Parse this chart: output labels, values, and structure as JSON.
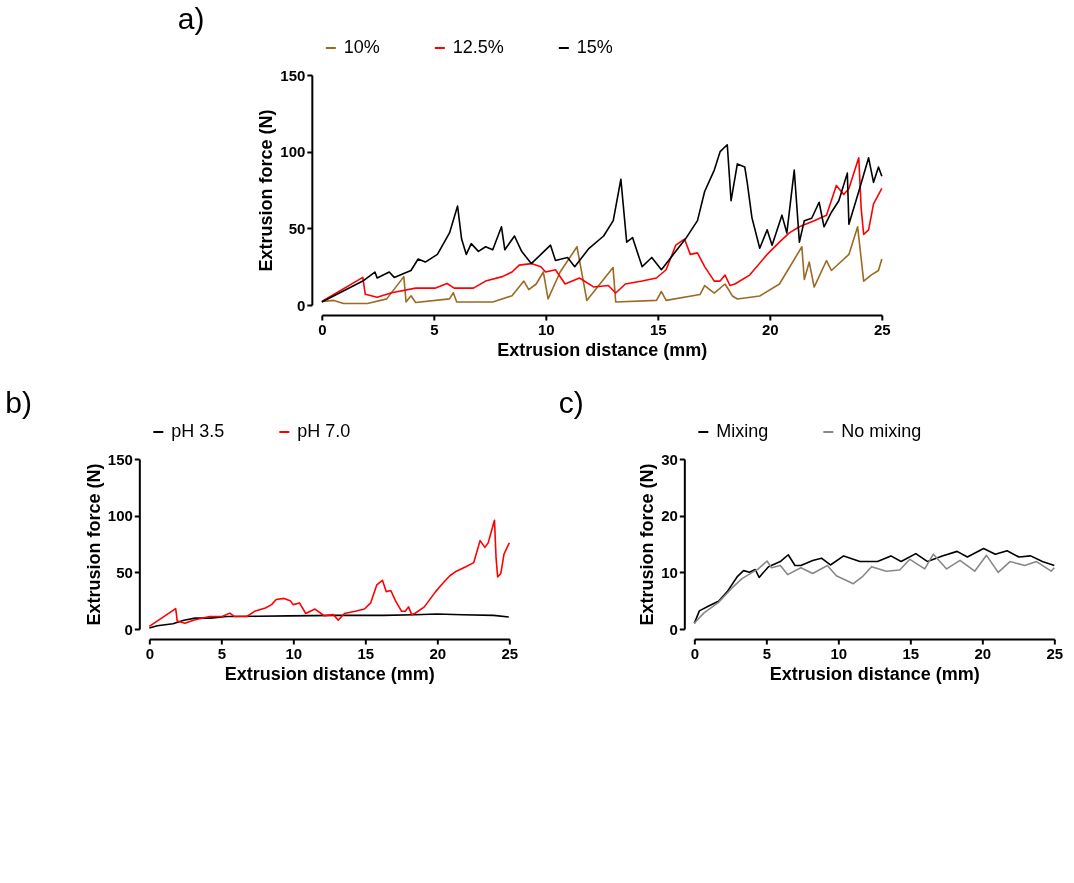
{
  "chart_data": [
    {
      "type": "line",
      "title": "a)",
      "xlabel": "Extrusion distance (mm)",
      "ylabel": "Extrusion force (N)",
      "xlim": [
        0,
        25
      ],
      "ylim": [
        0,
        150
      ],
      "xticks": [
        0,
        5,
        10,
        15,
        20,
        25
      ],
      "yticks": [
        0,
        50,
        100,
        150
      ],
      "grid": false,
      "legend": "top",
      "series": [
        {
          "name": "10%",
          "color": "#9c6a22",
          "x": [
            0,
            0.54,
            0.97,
            2.04,
            2.9,
            3.66,
            3.76,
            3.98,
            4.19,
            5.7,
            5.87,
            6.02,
            7.63,
            8.49,
            9.02,
            9.24,
            9.57,
            9.89,
            10.1,
            10.64,
            11.39,
            11.6,
            11.83,
            13.0,
            13.12,
            14.94,
            15.16,
            15.37,
            16.88,
            17.09,
            17.52,
            18,
            18.33,
            18.55,
            19.55,
            20.43,
            21.43,
            21.54,
            21.76,
            21.98,
            22.53,
            22.75,
            23.53,
            23.92,
            24.19,
            24.52,
            24.85,
            25
          ],
          "values": [
            2.3,
            3,
            1,
            1,
            4,
            18.5,
            2,
            6,
            1.6,
            4,
            8,
            2,
            2,
            6,
            15.6,
            10,
            13.7,
            21.5,
            4,
            21.5,
            38,
            21.5,
            3,
            24.4,
            2,
            3,
            8.8,
            3,
            6.8,
            12.7,
            7.8,
            13.7,
            5.9,
            3.9,
            5.9,
            13.7,
            38,
            16.6,
            28,
            11.7,
            29,
            22.5,
            33,
            51,
            15.6,
            19.5,
            22.5,
            30
          ]
        },
        {
          "name": "12.5%",
          "color": "#ff0000",
          "x": [
            0,
            1.83,
            1.94,
            2.47,
            3.12,
            4.19,
            5.05,
            5.59,
            5.91,
            6.77,
            7.31,
            8.06,
            8.49,
            8.81,
            9.35,
            9.78,
            9.99,
            10.43,
            10.86,
            11.5,
            12.15,
            12.79,
            13.12,
            13.55,
            14.3,
            14.94,
            15.37,
            15.8,
            16.19,
            16.45,
            16.77,
            17.09,
            17.52,
            17.78,
            18,
            18.22,
            18.44,
            19.1,
            19.88,
            20.43,
            20.87,
            21.32,
            21.98,
            22.53,
            22.97,
            23.3,
            23.53,
            23.97,
            24.08,
            24.19,
            24.41,
            24.63,
            25
          ],
          "values": [
            2.3,
            18,
            7,
            5,
            8,
            11,
            11,
            14,
            11,
            11,
            15.6,
            18.5,
            21.5,
            26,
            27,
            25,
            21.5,
            23,
            13.7,
            17.6,
            11.7,
            12.7,
            7.8,
            13.7,
            15.6,
            17.6,
            23,
            39,
            43,
            33,
            34,
            25,
            15.6,
            15.6,
            19.5,
            12.7,
            13.7,
            19.5,
            33,
            41,
            47,
            51,
            55,
            58.6,
            78,
            72,
            76,
            96,
            62.5,
            46,
            49,
            66,
            76
          ]
        },
        {
          "name": "15%",
          "color": "#000000",
          "x": [
            0,
            1.83,
            2.37,
            2.47,
            3.01,
            3.23,
            3.98,
            4.3,
            4.62,
            5.16,
            5.7,
            6.06,
            6.24,
            6.45,
            6.67,
            6.99,
            7.31,
            7.63,
            8.02,
            8.17,
            8.6,
            8.92,
            9.35,
            9.78,
            10.21,
            10.43,
            10.97,
            11.29,
            11.93,
            12.58,
            13.01,
            13.35,
            13.61,
            13.87,
            14.3,
            14.73,
            15.16,
            15.8,
            16.23,
            16.77,
            17.09,
            17.52,
            17.78,
            18.1,
            18.27,
            18.55,
            18.88,
            18.99,
            19.2,
            19.55,
            19.88,
            20.1,
            20.54,
            20.76,
            21.09,
            21.32,
            21.54,
            21.87,
            22.2,
            22.42,
            22.75,
            23.08,
            23.46,
            23.53,
            23.97,
            24.41,
            24.63,
            24.85,
            25
          ],
          "values": [
            2,
            15.6,
            21.5,
            17.6,
            21.5,
            18,
            22.5,
            30,
            28,
            33,
            47,
            64.5,
            43,
            33,
            40,
            35,
            38,
            36,
            51,
            36,
            45,
            35,
            27,
            33,
            39,
            29,
            31,
            25,
            37,
            45,
            55,
            82,
            41,
            44,
            25,
            31,
            23,
            35,
            43,
            55,
            74,
            88,
            100,
            104.5,
            68,
            92,
            90,
            80,
            57,
            37,
            49,
            39,
            58.6,
            47,
            88,
            41,
            55,
            56.6,
            67,
            51,
            60.5,
            68,
            86,
            52.7,
            74,
            96,
            80,
            90,
            84
          ]
        }
      ]
    },
    {
      "type": "line",
      "title": "b)",
      "xlabel": "Extrusion distance (mm)",
      "ylabel": "Extrusion force (N)",
      "xlim": [
        0,
        25
      ],
      "ylim": [
        0,
        150
      ],
      "xticks": [
        0,
        5,
        10,
        15,
        20,
        25
      ],
      "yticks": [
        0,
        50,
        100,
        150
      ],
      "grid": false,
      "legend": "top",
      "series": [
        {
          "name": "pH 3.5",
          "color": "#000000",
          "x": [
            0,
            0.55,
            1.64,
            2.4,
            3.17,
            4.26,
            5.35,
            7.53,
            9.72,
            12.99,
            16.27,
            18.45,
            19.98,
            21.72,
            23.91,
            24.96
          ],
          "values": [
            0.8,
            2.8,
            4.7,
            7.7,
            9.6,
            9.6,
            11,
            11.2,
            11.6,
            12,
            12,
            12.6,
            13.2,
            12.6,
            12,
            10.6
          ]
        },
        {
          "name": "pH 7.0",
          "color": "#ff0000",
          "x": [
            0,
            1.83,
            1.94,
            2.47,
            3.12,
            4.19,
            5.05,
            5.59,
            5.91,
            6.77,
            7.31,
            8.06,
            8.49,
            8.81,
            9.35,
            9.78,
            9.99,
            10.43,
            10.86,
            11.5,
            12.15,
            12.79,
            13.12,
            13.55,
            14.3,
            14.94,
            15.37,
            15.8,
            16.19,
            16.45,
            16.77,
            17.09,
            17.52,
            17.78,
            18,
            18.22,
            18.44,
            19.1,
            19.88,
            20.43,
            20.87,
            21.32,
            21.98,
            22.53,
            22.97,
            23.3,
            23.53,
            23.97,
            24.08,
            24.19,
            24.41,
            24.63,
            25
          ],
          "values": [
            2.3,
            18,
            7,
            5,
            8,
            11,
            11,
            14,
            11,
            11,
            15.6,
            18.5,
            21.5,
            26,
            27,
            25,
            21.5,
            23,
            13.7,
            17.6,
            11.7,
            12.7,
            7.8,
            13.7,
            15.6,
            17.6,
            23,
            39,
            43,
            33,
            34,
            25,
            15.6,
            15.6,
            19.5,
            12.7,
            13.7,
            19.5,
            33,
            41,
            47,
            51,
            55,
            58.6,
            78,
            72,
            76,
            96,
            62.5,
            46,
            49,
            66,
            76
          ]
        }
      ]
    },
    {
      "type": "line",
      "title": "c)",
      "xlabel": "Extrusion distance (mm)",
      "ylabel": "Extrusion force (N)",
      "xlim": [
        0,
        25
      ],
      "ylim": [
        0,
        30
      ],
      "xticks": [
        0,
        5,
        10,
        15,
        20,
        25
      ],
      "yticks": [
        0,
        10,
        20,
        30
      ],
      "grid": false,
      "legend": "top",
      "series": [
        {
          "name": "Mixing",
          "color": "#000000",
          "x": [
            0,
            0.35,
            0.96,
            1.68,
            2.29,
            3.0,
            3.42,
            3.83,
            4.23,
            4.5,
            5.15,
            5.97,
            6.52,
            6.99,
            7.4,
            8.22,
            8.83,
            9.45,
            10.37,
            11.5,
            12.72,
            13.65,
            14.36,
            15.38,
            16.2,
            17.22,
            18.25,
            18.96,
            20.09,
            20.9,
            21.72,
            22.54,
            23.36,
            24.17,
            25
          ],
          "values": [
            1,
            3.2,
            4,
            4.9,
            6.6,
            9.3,
            10.3,
            10,
            10.5,
            9.1,
            11,
            11.9,
            13.1,
            11.2,
            11.2,
            12.1,
            12.5,
            11.3,
            12.9,
            11.9,
            11.9,
            12.9,
            11.9,
            13.3,
            11.9,
            12.9,
            13.7,
            12.7,
            14.2,
            13.2,
            13.8,
            12.7,
            12.9,
            11.9,
            11.2
          ]
        },
        {
          "name": "No mixing",
          "color": "#888888",
          "x": [
            0,
            0.65,
            1.68,
            2.6,
            3.31,
            4.03,
            4.44,
            5.05,
            5.36,
            5.97,
            6.48,
            7.4,
            8.22,
            9.24,
            9.86,
            11.04,
            11.7,
            12.31,
            13.33,
            14.26,
            14.97,
            16,
            16.6,
            17.52,
            18.45,
            19.47,
            20.29,
            21.1,
            21.92,
            22.94,
            23.76,
            24.78,
            25
          ],
          "values": [
            1,
            2.8,
            4.7,
            7.2,
            8.9,
            10,
            10.6,
            12,
            10.8,
            11.2,
            9.6,
            10.8,
            9.8,
            11.2,
            9.4,
            8,
            9.3,
            11,
            10.2,
            10.4,
            12.3,
            10.6,
            13.2,
            10.6,
            12.1,
            10.2,
            13,
            10,
            11.9,
            11.2,
            11.9,
            10.2,
            10.8
          ]
        }
      ]
    }
  ]
}
